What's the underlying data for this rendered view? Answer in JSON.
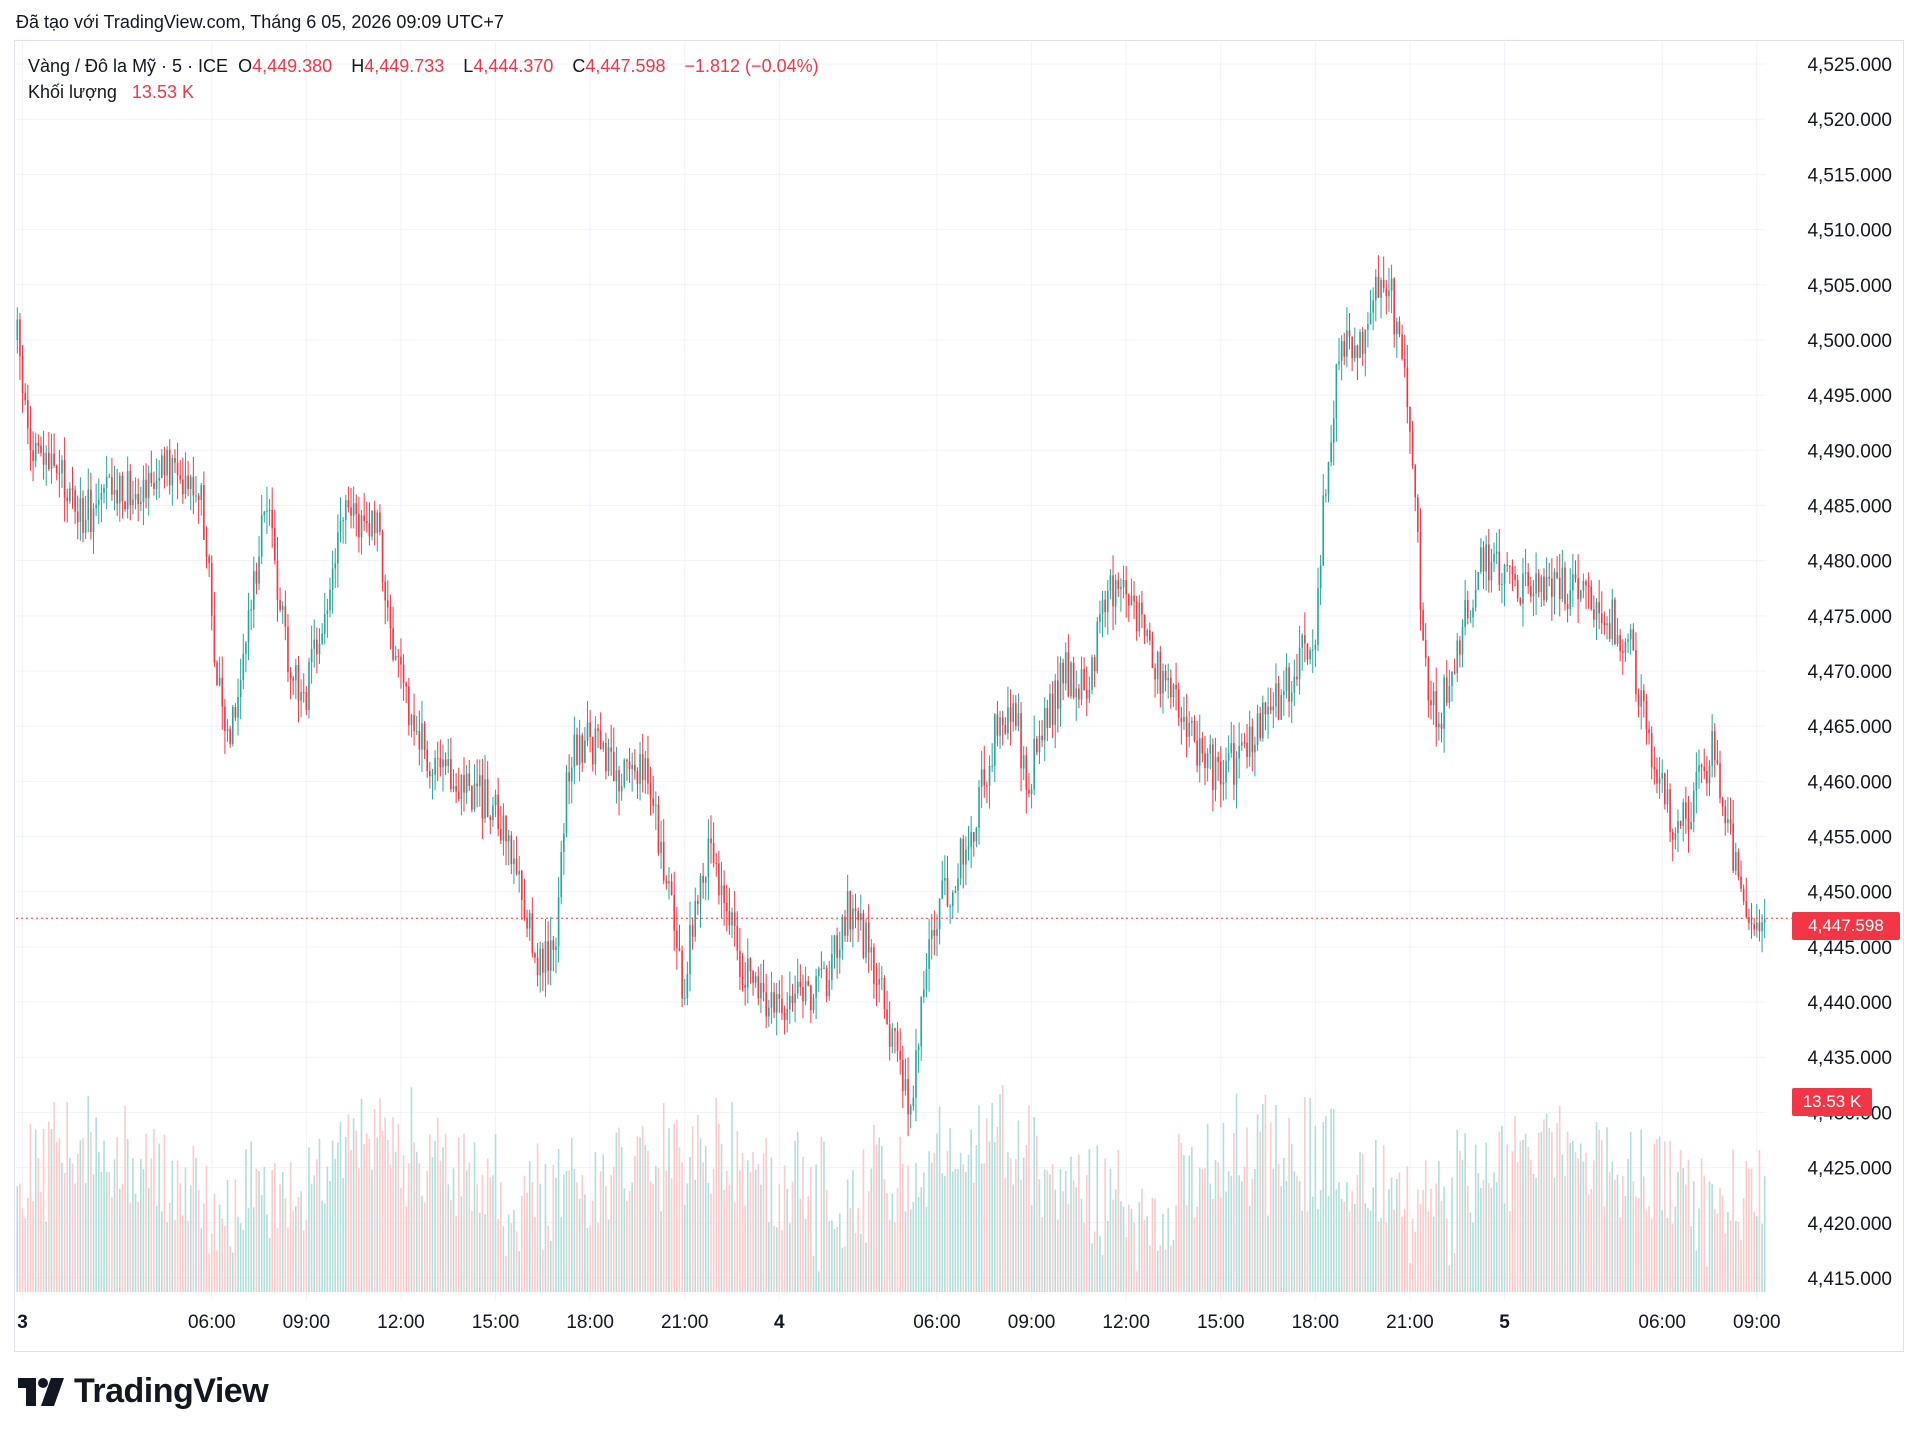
{
  "header": {
    "text": "Đã tạo với TradingView.com, Tháng 6 05, 2026 09:09 UTC+7"
  },
  "legend": {
    "symbol": "Vàng / Đô la Mỹ · 5 · ICE",
    "o_label": "O",
    "o_value": "4,449.380",
    "h_label": "H",
    "h_value": "4,449.733",
    "l_label": "L",
    "l_value": "4,444.370",
    "c_label": "C",
    "c_value": "4,447.598",
    "change": "−1.812 (−0.04%)",
    "volume_label": "Khối lượng",
    "volume_value": "13.53 K"
  },
  "price_label": "4,447.598",
  "volume_badge": "13.53 K",
  "brand": {
    "name": "TradingView"
  },
  "colors": {
    "up": "#26a69a",
    "down": "#f23645",
    "grid": "#f0f3fa",
    "up_vol": "#b2dfdb",
    "down_vol": "#fccbcd"
  },
  "chart_data": {
    "type": "candlestick",
    "title": "Vàng / Đô la Mỹ · 5 · ICE",
    "ylim": [
      4413,
      4527
    ],
    "y_ticks": [
      "4,525.000",
      "4,520.000",
      "4,515.000",
      "4,510.000",
      "4,505.000",
      "4,500.000",
      "4,495.000",
      "4,490.000",
      "4,485.000",
      "4,480.000",
      "4,475.000",
      "4,470.000",
      "4,465.000",
      "4,460.000",
      "4,455.000",
      "4,450.000",
      "4,445.000",
      "4,440.000",
      "4,435.000",
      "4,430.000",
      "4,425.000",
      "4,420.000",
      "4,415.000"
    ],
    "x_ticks": [
      {
        "label": "3",
        "bold": true,
        "i": 2
      },
      {
        "label": "06:00",
        "bold": false,
        "i": 74
      },
      {
        "label": "09:00",
        "bold": false,
        "i": 110
      },
      {
        "label": "12:00",
        "bold": false,
        "i": 146
      },
      {
        "label": "15:00",
        "bold": false,
        "i": 182
      },
      {
        "label": "18:00",
        "bold": false,
        "i": 218
      },
      {
        "label": "21:00",
        "bold": false,
        "i": 254
      },
      {
        "label": "4",
        "bold": true,
        "i": 290
      },
      {
        "label": "06:00",
        "bold": false,
        "i": 350
      },
      {
        "label": "09:00",
        "bold": false,
        "i": 386
      },
      {
        "label": "12:00",
        "bold": false,
        "i": 422
      },
      {
        "label": "15:00",
        "bold": false,
        "i": 458
      },
      {
        "label": "18:00",
        "bold": false,
        "i": 494
      },
      {
        "label": "21:00",
        "bold": false,
        "i": 530
      },
      {
        "label": "5",
        "bold": true,
        "i": 566
      },
      {
        "label": "06:00",
        "bold": false,
        "i": 626
      },
      {
        "label": "09:00",
        "bold": false,
        "i": 662
      }
    ],
    "bar_count": 666,
    "close_anchors": [
      [
        0,
        4500
      ],
      [
        5,
        4490
      ],
      [
        15,
        4488
      ],
      [
        25,
        4484
      ],
      [
        35,
        4486
      ],
      [
        45,
        4487
      ],
      [
        55,
        4488
      ],
      [
        65,
        4488
      ],
      [
        70,
        4486
      ],
      [
        76,
        4470
      ],
      [
        80,
        4464
      ],
      [
        88,
        4474
      ],
      [
        94,
        4486
      ],
      [
        98,
        4480
      ],
      [
        104,
        4470
      ],
      [
        110,
        4468
      ],
      [
        118,
        4476
      ],
      [
        124,
        4484
      ],
      [
        132,
        4484
      ],
      [
        138,
        4482
      ],
      [
        144,
        4470
      ],
      [
        150,
        4466
      ],
      [
        160,
        4460
      ],
      [
        170,
        4460
      ],
      [
        180,
        4458
      ],
      [
        190,
        4452
      ],
      [
        198,
        4444
      ],
      [
        204,
        4444
      ],
      [
        210,
        4462
      ],
      [
        218,
        4464
      ],
      [
        228,
        4460
      ],
      [
        238,
        4462
      ],
      [
        242,
        4458
      ],
      [
        248,
        4450
      ],
      [
        254,
        4440
      ],
      [
        258,
        4450
      ],
      [
        264,
        4455
      ],
      [
        270,
        4448
      ],
      [
        278,
        4442
      ],
      [
        286,
        4440
      ],
      [
        292,
        4440
      ],
      [
        296,
        4442
      ],
      [
        302,
        4440
      ],
      [
        308,
        4442
      ],
      [
        316,
        4448
      ],
      [
        322,
        4446
      ],
      [
        330,
        4440
      ],
      [
        340,
        4430
      ],
      [
        344,
        4440
      ],
      [
        350,
        4448
      ],
      [
        358,
        4452
      ],
      [
        366,
        4458
      ],
      [
        374,
        4466
      ],
      [
        380,
        4466
      ],
      [
        384,
        4460
      ],
      [
        390,
        4464
      ],
      [
        398,
        4470
      ],
      [
        406,
        4468
      ],
      [
        414,
        4476
      ],
      [
        420,
        4479
      ],
      [
        428,
        4474
      ],
      [
        438,
        4468
      ],
      [
        446,
        4464
      ],
      [
        456,
        4461
      ],
      [
        466,
        4462
      ],
      [
        476,
        4466
      ],
      [
        486,
        4470
      ],
      [
        494,
        4474
      ],
      [
        498,
        4488
      ],
      [
        504,
        4500
      ],
      [
        510,
        4498
      ],
      [
        516,
        4505
      ],
      [
        522,
        4505
      ],
      [
        528,
        4496
      ],
      [
        532,
        4485
      ],
      [
        536,
        4470
      ],
      [
        540,
        4465
      ],
      [
        546,
        4470
      ],
      [
        552,
        4476
      ],
      [
        558,
        4480
      ],
      [
        566,
        4478
      ],
      [
        576,
        4477
      ],
      [
        586,
        4478
      ],
      [
        596,
        4477
      ],
      [
        606,
        4475
      ],
      [
        614,
        4472
      ],
      [
        620,
        4465
      ],
      [
        626,
        4460
      ],
      [
        632,
        4455
      ],
      [
        640,
        4460
      ],
      [
        646,
        4463
      ],
      [
        652,
        4455
      ],
      [
        658,
        4448
      ],
      [
        665,
        4447.598
      ]
    ],
    "volume_range": [
      0,
      30000
    ]
  }
}
